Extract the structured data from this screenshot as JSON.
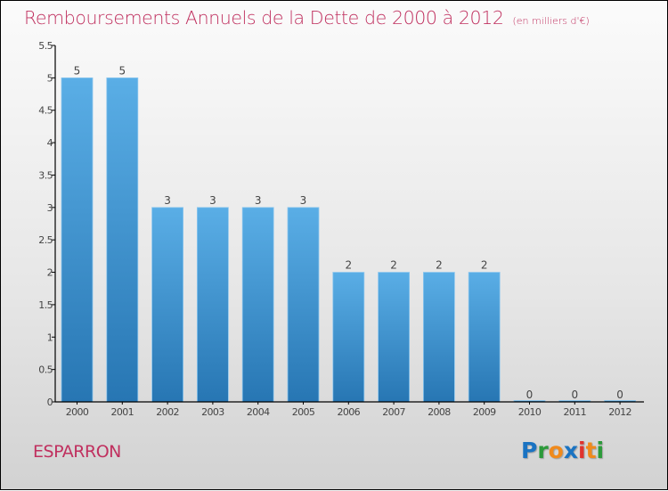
{
  "chart_data": {
    "type": "bar",
    "title": "Remboursements Annuels de la Dette de 2000 à 2012",
    "subtitle": "(en milliers d'€)",
    "xlabel": "",
    "ylabel": "",
    "categories": [
      "2000",
      "2001",
      "2002",
      "2003",
      "2004",
      "2005",
      "2006",
      "2007",
      "2008",
      "2009",
      "2010",
      "2011",
      "2012"
    ],
    "values": [
      5,
      5,
      3,
      3,
      3,
      3,
      2,
      2,
      2,
      2,
      0,
      0,
      0
    ],
    "value_labels": [
      "5",
      "5",
      "3",
      "3",
      "3",
      "3",
      "2",
      "2",
      "2",
      "2",
      "0",
      "0",
      "0"
    ],
    "ylim": [
      0,
      5.5
    ],
    "yticks": [
      0,
      0.5,
      1,
      1.5,
      2,
      2.5,
      3,
      3.5,
      4,
      4.5,
      5,
      5.5
    ],
    "ytick_labels": [
      "0",
      "0.5",
      "1",
      "1.5",
      "2",
      "2.5",
      "3",
      "3.5",
      "4",
      "4.5",
      "5",
      "5.5"
    ],
    "grid": false,
    "legend": "none",
    "colors": {
      "bar_top": "#5aaee6",
      "bar_bottom": "#2776b3",
      "bar_edge": "#8cc6ee",
      "title": "#c0305f"
    }
  },
  "footer": {
    "commune": "ESPARRON",
    "logo": {
      "letters": [
        {
          "char": "P",
          "color": "#1a73c2"
        },
        {
          "char": "r",
          "color": "#2c9a3a"
        },
        {
          "char": "o",
          "color": "#f08a1c"
        },
        {
          "char": "x",
          "color": "#1a73c2"
        },
        {
          "char": "i",
          "color": "#e0322d"
        },
        {
          "char": "t",
          "color": "#f08a1c"
        },
        {
          "char": "i",
          "color": "#2c9a3a"
        }
      ]
    }
  }
}
